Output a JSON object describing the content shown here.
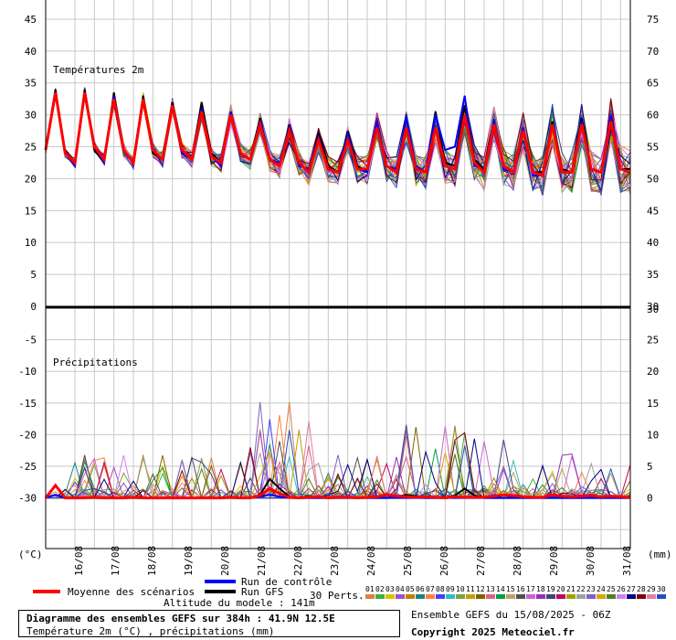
{
  "chart_data": {
    "type": "line",
    "panels": [
      {
        "title": "Températures 2m",
        "left_ticks": [
          "45",
          "40",
          "35",
          "30",
          "25",
          "20",
          "15",
          "10",
          "5",
          "0"
        ],
        "right_ticks": [
          "75",
          "70",
          "65",
          "60",
          "55",
          "50",
          "45",
          "40",
          "35",
          "30"
        ],
        "ylim": [
          0,
          48
        ]
      },
      {
        "title": "Précipitations",
        "left_ticks": [
          "-5",
          "-10",
          "-15",
          "-20",
          "-25",
          "-30"
        ],
        "right_ticks": [
          "25",
          "20",
          "15",
          "10",
          "5",
          "0"
        ],
        "ylim": [
          -38,
          0
        ]
      }
    ],
    "left_unit": "(°C)",
    "right_unit": "(mm)",
    "date_labels": [
      "16/08",
      "17/08",
      "18/08",
      "19/08",
      "20/08",
      "21/08",
      "22/08",
      "23/08",
      "24/08",
      "25/08",
      "26/08",
      "27/08",
      "28/08",
      "29/08",
      "30/08",
      "31/08"
    ],
    "series": [
      {
        "name": "Moyenne des scénarios",
        "color": "#ff0000",
        "temp": [
          24.5,
          33.5,
          24,
          22.5,
          33.5,
          25,
          23,
          32.5,
          24.5,
          22.5,
          32.5,
          24.5,
          23,
          31.5,
          24.5,
          23,
          30.5,
          23.5,
          22.5,
          30,
          24,
          23,
          28.5,
          23,
          22,
          27.5,
          22.5,
          21,
          26,
          21.5,
          21,
          26,
          21.5,
          21.5,
          28,
          22,
          21,
          28,
          21.5,
          21,
          28,
          22,
          21.5,
          30,
          22.5,
          21,
          28.5,
          22,
          21,
          27.5,
          21,
          20.5,
          28.5,
          21,
          21,
          28.5,
          21.5,
          21,
          29,
          21.5,
          21
        ],
        "precip": [
          -30,
          -28,
          -30,
          -30,
          -30,
          -29.9,
          -30,
          -30,
          -30,
          -29.9,
          -30,
          -30,
          -30,
          -30,
          -30,
          -30,
          -30,
          -30,
          -30,
          -29.9,
          -30,
          -30,
          -29.6,
          -28.5,
          -29.3,
          -29.9,
          -30,
          -29.9,
          -29.8,
          -30,
          -29.9,
          -29.9,
          -30,
          -29.9,
          -29.8,
          -29.5,
          -29.7,
          -29.8,
          -29.9,
          -29.8,
          -29.9,
          -30,
          -29.8,
          -29.9,
          -29.9,
          -29.9,
          -29.7,
          -29.5,
          -29.6,
          -29.8,
          -29.9,
          -29.9,
          -29.5,
          -29.7,
          -29.8,
          -29.7,
          -29.6,
          -29.8,
          -29.7,
          -29.8,
          -29.9
        ]
      },
      {
        "name": "Run de contrôle",
        "color": "#0000ff",
        "temp": [
          24.5,
          33.5,
          24,
          22,
          33.5,
          25,
          22.5,
          33,
          24.5,
          22.5,
          32.5,
          24.5,
          23,
          31.5,
          24,
          23,
          31,
          23.5,
          22,
          30.5,
          24,
          23,
          29,
          23,
          22.5,
          28,
          22,
          21.5,
          26.5,
          21.5,
          21,
          27,
          21.5,
          21,
          29,
          22,
          21.5,
          29.5,
          22,
          21,
          30,
          24.5,
          25,
          33,
          22,
          21.5,
          29,
          21.5,
          21,
          28,
          20.5,
          20.5,
          28.5,
          21,
          21,
          29,
          21.5,
          21,
          30,
          21.5,
          21
        ],
        "precip": [
          -30,
          -29.5,
          -30,
          -30,
          -30,
          -30,
          -30,
          -30,
          -30,
          -30,
          -30,
          -30,
          -30,
          -30,
          -30,
          -30,
          -30,
          -30,
          -30,
          -30,
          -30,
          -30,
          -29.8,
          -29.5,
          -29.8,
          -30,
          -30,
          -30,
          -30,
          -30,
          -30,
          -30,
          -30,
          -30,
          -30,
          -30,
          -30,
          -30,
          -30,
          -30,
          -30,
          -30,
          -30,
          -30,
          -30,
          -30,
          -30,
          -30,
          -30,
          -30,
          -30,
          -30,
          -30,
          -30,
          -30,
          -30,
          -30,
          -30,
          -30,
          -30,
          -30
        ]
      },
      {
        "name": "Run GFS",
        "color": "#000000",
        "temp": [
          24.5,
          34,
          24,
          22,
          34,
          24.5,
          22.5,
          33.5,
          24.5,
          22.5,
          33,
          24,
          23,
          32,
          24,
          23,
          32,
          24,
          22.5,
          30.5,
          24,
          23,
          29.5,
          23,
          22,
          28.5,
          22,
          21.5,
          27,
          22,
          21,
          27.5,
          22,
          21,
          29,
          22,
          21,
          29.5,
          22,
          21,
          30.5,
          22.5,
          22,
          31.5,
          23,
          21.5,
          29,
          22,
          21,
          28,
          21,
          21,
          29,
          21.5,
          21,
          29.5,
          21.5,
          21,
          29.5,
          21.5,
          21.5
        ],
        "precip": [
          -30,
          -29.5,
          -30,
          -30,
          -30,
          -30,
          -30,
          -30,
          -30,
          -30,
          -30,
          -30,
          -30,
          -30,
          -30,
          -30,
          -30,
          -30,
          -30,
          -30,
          -30,
          -30,
          -29.5,
          -27,
          -28.5,
          -29.8,
          -30,
          -30,
          -30,
          -30,
          -30,
          -30,
          -30,
          -30,
          -30,
          -30,
          -29.8,
          -29.5,
          -29.7,
          -30,
          -30,
          -30,
          -29.6,
          -28.5,
          -29.6,
          -30,
          -30,
          -30,
          -30,
          -30,
          -30,
          -30,
          -30,
          -30,
          -30,
          -30,
          -30,
          -30,
          -30,
          -30,
          -30
        ]
      }
    ]
  },
  "legend": {
    "mean_label": "Moyenne des scénarios",
    "control_label": "Run de contrôle",
    "gfs_label": "Run GFS",
    "perts_label": "30 Perts.",
    "pert_numbers": [
      "01",
      "02",
      "03",
      "04",
      "05",
      "06",
      "07",
      "08",
      "09",
      "10",
      "11",
      "12",
      "13",
      "14",
      "15",
      "16",
      "17",
      "18",
      "19",
      "20",
      "21",
      "22",
      "23",
      "24",
      "25",
      "26",
      "27",
      "28",
      "29",
      "30"
    ],
    "pert_colors": [
      "#e08040",
      "#40b040",
      "#e0c000",
      "#a050c0",
      "#c08000",
      "#208080",
      "#ff8040",
      "#4040ff",
      "#30c0c0",
      "#80a040",
      "#c0a000",
      "#806000",
      "#e06080",
      "#00a040",
      "#c0a060",
      "#505050",
      "#d060d0",
      "#9030c0",
      "#404080",
      "#c00060",
      "#a0a000",
      "#a0a0a0",
      "#8060c0",
      "#e0a000",
      "#508020",
      "#d080f0",
      "#000080",
      "#800000",
      "#e080a0",
      "#2050c0"
    ]
  },
  "altitude": "Altitude du modele : 141m",
  "info": {
    "title": "Diagramme des ensembles GEFS sur 384h : 41.9N 12.5E",
    "subtitle": "Température 2m (°C) , précipitations (mm)"
  },
  "run_info": "Ensemble GEFS du 15/08/2025 - 06Z",
  "copyright": "Copyright 2025 Meteociel.fr"
}
